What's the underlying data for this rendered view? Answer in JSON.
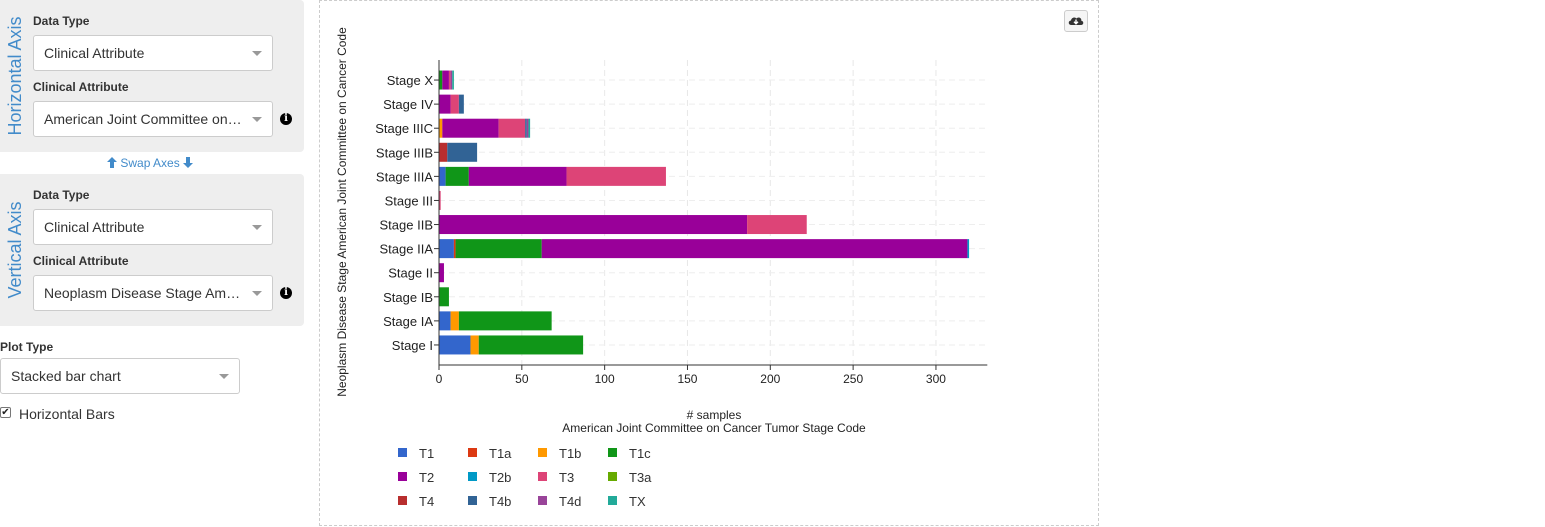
{
  "horizontal_axis": {
    "title": "Horizontal Axis",
    "data_type_label": "Data Type",
    "data_type_value": "Clinical Attribute",
    "attribute_label": "Clinical Attribute",
    "attribute_value": "American Joint Committee on Cancer Tumor Stage Code"
  },
  "swap_axes_label": "Swap Axes",
  "vertical_axis": {
    "title": "Vertical Axis",
    "data_type_label": "Data Type",
    "data_type_value": "Clinical Attribute",
    "attribute_label": "Clinical Attribute",
    "attribute_value": "Neoplasm Disease Stage American Joint Committee on Cancer Code"
  },
  "plot_type": {
    "label": "Plot Type",
    "value": "Stacked bar chart"
  },
  "horizontal_bars": {
    "label": "Horizontal Bars",
    "checked": true
  },
  "download_icon": "cloud-download-icon",
  "chart_data": {
    "type": "bar",
    "orientation": "horizontal",
    "stacked": true,
    "xlabel": "# samples",
    "xlabel2": "American Joint Committee on Cancer Tumor Stage Code",
    "ylabel": "Neoplasm Disease Stage American Joint Committee on Cancer Code",
    "xlim": [
      0,
      331
    ],
    "xticks": [
      0,
      50,
      100,
      150,
      200,
      250,
      300
    ],
    "grid": true,
    "legend_position": "bottom",
    "categories": [
      "Stage X",
      "Stage IV",
      "Stage IIIC",
      "Stage IIIB",
      "Stage IIIA",
      "Stage III",
      "Stage IIB",
      "Stage IIA",
      "Stage II",
      "Stage IB",
      "Stage IA",
      "Stage I"
    ],
    "series": [
      {
        "name": "T1",
        "color": "#3366cc",
        "values": [
          0,
          0,
          0,
          0,
          4,
          0,
          0,
          9,
          0,
          0,
          7,
          19
        ]
      },
      {
        "name": "T1a",
        "color": "#dc3912",
        "values": [
          0,
          0,
          0,
          0,
          0,
          0,
          0,
          1,
          0,
          0,
          0,
          0
        ]
      },
      {
        "name": "T1b",
        "color": "#ff9900",
        "values": [
          0,
          0,
          2,
          0,
          0,
          0,
          0,
          0,
          0,
          0,
          5,
          5
        ]
      },
      {
        "name": "T1c",
        "color": "#109618",
        "values": [
          2,
          0,
          0,
          0,
          14,
          0,
          0,
          52,
          0,
          6,
          56,
          63
        ]
      },
      {
        "name": "T2",
        "color": "#990099",
        "values": [
          4,
          7,
          34,
          0,
          59,
          0,
          186,
          257,
          3,
          0,
          0,
          0
        ]
      },
      {
        "name": "T2b",
        "color": "#0099c6",
        "values": [
          0,
          0,
          0,
          0,
          0,
          0,
          0,
          1,
          0,
          0,
          0,
          0
        ]
      },
      {
        "name": "T3",
        "color": "#dd4477",
        "values": [
          1,
          5,
          16,
          0,
          60,
          1,
          36,
          0,
          0,
          0,
          0,
          0
        ]
      },
      {
        "name": "T3a",
        "color": "#66aa00",
        "values": [
          0,
          0,
          0,
          0,
          0,
          0,
          0,
          0,
          0,
          0,
          0,
          0
        ]
      },
      {
        "name": "T4",
        "color": "#b82e2e",
        "values": [
          0,
          0,
          0,
          5,
          0,
          0,
          0,
          0,
          0,
          0,
          0,
          0
        ]
      },
      {
        "name": "T4b",
        "color": "#316395",
        "values": [
          0,
          3,
          1,
          18,
          0,
          0,
          0,
          0,
          0,
          0,
          0,
          0
        ]
      },
      {
        "name": "T4d",
        "color": "#994499",
        "values": [
          1,
          0,
          1,
          0,
          0,
          0,
          0,
          0,
          0,
          0,
          0,
          0
        ]
      },
      {
        "name": "TX",
        "color": "#22aa99",
        "values": [
          1,
          0,
          1,
          0,
          0,
          0,
          0,
          0,
          0,
          0,
          0,
          0
        ]
      }
    ]
  }
}
